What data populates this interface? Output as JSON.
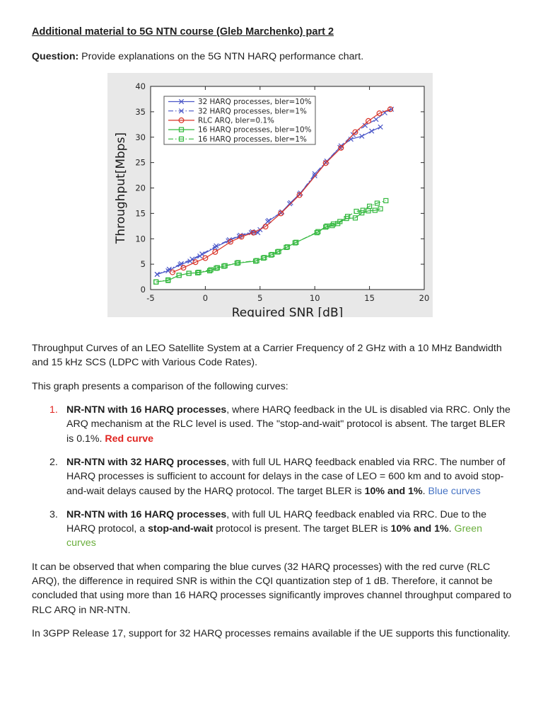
{
  "page": {
    "title": "Additional material to 5G NTN course (Gleb Marchenko) part 2",
    "question_label": "Question:",
    "question_text": " Provide explanations on the 5G NTN HARQ performance chart.",
    "caption": "Throughput Curves of an LEO Satellite System at a Carrier Frequency of 2 GHz with a 10 MHz Bandwidth and 15 kHz SCS (LDPC with Various Code Rates).",
    "intro": "This graph presents a comparison of the following curves:",
    "list": [
      {
        "number": "1.",
        "number_color": "#e02420",
        "segments": [
          {
            "text": "NR-NTN with 16 HARQ processes",
            "bold": true
          },
          {
            "text": ", where HARQ feedback in the UL is disabled via RRC. Only the ARQ mechanism at the RLC level is used. The \"stop-and-wait\" protocol is absent. The target BLER is 0.1%. "
          },
          {
            "text": "Red curve",
            "bold": true,
            "color": "#e02420"
          }
        ]
      },
      {
        "number": "2.",
        "segments": [
          {
            "text": "NR-NTN with 32 HARQ processes",
            "bold": true
          },
          {
            "text": ", with full UL HARQ feedback enabled via RRC. The number of HARQ processes is sufficient to account for delays in the case of LEO = 600 km and to avoid stop-and-wait delays caused by the HARQ protocol. The target BLER is "
          },
          {
            "text": "10% and 1%",
            "bold": true
          },
          {
            "text": ". "
          },
          {
            "text": "Blue curves",
            "color": "#4472c4"
          }
        ]
      },
      {
        "number": "3.",
        "segments": [
          {
            "text": "NR-NTN with 16 HARQ processes",
            "bold": true
          },
          {
            "text": ", with full UL HARQ feedback enabled via RRC. Due to the HARQ protocol, a "
          },
          {
            "text": "stop-and-wait",
            "bold": true
          },
          {
            "text": " protocol is present. The target BLER is "
          },
          {
            "text": "10% and 1%",
            "bold": true
          },
          {
            "text": ". "
          },
          {
            "text": "Green curves",
            "color": "#6aae3c"
          }
        ]
      }
    ],
    "closing_1": "It can be observed that when comparing the blue curves (32 HARQ processes) with the red curve (RLC ARQ), the difference in required SNR is within the CQI quantization step of 1 dB. Therefore, it cannot be concluded that using more than 16 HARQ processes significantly improves channel throughput compared to RLC ARQ in NR-NTN.",
    "closing_2": "In 3GPP Release 17, support for 32 HARQ processes remains available if the UE supports this functionality."
  },
  "chart_data": {
    "type": "line",
    "title": "",
    "xlabel": "Required SNR [dB]",
    "ylabel": "Throughput[Mbps]",
    "xlim": [
      -5,
      20
    ],
    "ylim": [
      0,
      40
    ],
    "xticks": [
      -5,
      0,
      5,
      10,
      15,
      20
    ],
    "yticks": [
      0,
      5,
      10,
      15,
      20,
      25,
      30,
      35,
      40
    ],
    "grid": false,
    "legend_position": "top-left",
    "panel_background": "#e8e8e8",
    "plot_background": "#ffffff",
    "series": [
      {
        "name": "32 HARQ processes, bler=10%",
        "color": "#4b57c8",
        "line": "solid",
        "marker": "x",
        "points": [
          [
            -4.4,
            3.0
          ],
          [
            -3.4,
            3.7
          ],
          [
            -2.3,
            4.9
          ],
          [
            -1.4,
            5.6
          ],
          [
            -0.5,
            6.6
          ],
          [
            0.9,
            8.3
          ],
          [
            2.1,
            9.6
          ],
          [
            3.1,
            10.5
          ],
          [
            4.2,
            11.2
          ],
          [
            4.8,
            11.2
          ],
          [
            5.7,
            13.4
          ],
          [
            6.9,
            15.1
          ],
          [
            7.7,
            16.9
          ],
          [
            8.6,
            18.8
          ],
          [
            10.0,
            22.4
          ],
          [
            11.0,
            25.0
          ],
          [
            12.3,
            28.0
          ],
          [
            13.3,
            29.6
          ],
          [
            14.3,
            30.2
          ],
          [
            15.2,
            31.2
          ],
          [
            16.0,
            32.0
          ]
        ]
      },
      {
        "name": "32 HARQ processes, bler=1%",
        "color": "#4b57c8",
        "line": "dashdot",
        "marker": "x",
        "points": [
          [
            -4.4,
            3.0
          ],
          [
            -3.3,
            4.0
          ],
          [
            -2.2,
            5.1
          ],
          [
            -1.2,
            6.0
          ],
          [
            -0.3,
            7.0
          ],
          [
            1.0,
            8.6
          ],
          [
            2.2,
            9.8
          ],
          [
            3.2,
            10.7
          ],
          [
            4.3,
            11.4
          ],
          [
            5.0,
            11.8
          ],
          [
            5.8,
            13.6
          ],
          [
            7.0,
            15.3
          ],
          [
            7.8,
            17.1
          ],
          [
            8.7,
            19.0
          ],
          [
            10.0,
            22.8
          ],
          [
            11.1,
            25.3
          ],
          [
            12.4,
            28.3
          ],
          [
            13.5,
            30.5
          ],
          [
            14.6,
            32.3
          ],
          [
            15.6,
            33.5
          ],
          [
            16.4,
            34.8
          ],
          [
            17.0,
            35.5
          ]
        ]
      },
      {
        "name": "RLC ARQ, bler=0.1%",
        "color": "#d93226",
        "line": "solid",
        "marker": "o",
        "points": [
          [
            -3.0,
            3.4
          ],
          [
            -2.0,
            4.3
          ],
          [
            -0.9,
            5.4
          ],
          [
            0.0,
            6.2
          ],
          [
            0.9,
            7.4
          ],
          [
            2.3,
            9.4
          ],
          [
            3.3,
            10.4
          ],
          [
            4.4,
            11.2
          ],
          [
            5.5,
            12.4
          ],
          [
            6.9,
            15.0
          ],
          [
            8.6,
            18.6
          ],
          [
            11.0,
            24.9
          ],
          [
            12.4,
            27.9
          ],
          [
            13.7,
            31.0
          ],
          [
            14.9,
            33.2
          ],
          [
            15.9,
            34.7
          ],
          [
            16.9,
            35.5
          ]
        ]
      },
      {
        "name": "16 HARQ processes, bler=10%",
        "color": "#33b83e",
        "line": "solid",
        "marker": "s",
        "points": [
          [
            -4.5,
            1.5
          ],
          [
            -3.4,
            1.8
          ],
          [
            -2.4,
            2.8
          ],
          [
            -1.5,
            3.2
          ],
          [
            -0.7,
            3.3
          ],
          [
            0.4,
            3.7
          ],
          [
            1.0,
            4.2
          ],
          [
            1.7,
            4.6
          ],
          [
            2.9,
            5.2
          ],
          [
            4.6,
            5.6
          ],
          [
            5.3,
            6.2
          ],
          [
            6.0,
            6.8
          ],
          [
            6.6,
            7.4
          ],
          [
            7.4,
            8.3
          ],
          [
            8.2,
            9.2
          ],
          [
            10.2,
            11.2
          ],
          [
            11.0,
            12.3
          ],
          [
            11.6,
            12.6
          ],
          [
            12.1,
            13.0
          ],
          [
            12.9,
            14.0
          ],
          [
            13.7,
            14.1
          ],
          [
            14.3,
            15.1
          ],
          [
            14.9,
            15.5
          ],
          [
            15.5,
            15.6
          ],
          [
            16.0,
            15.9
          ]
        ]
      },
      {
        "name": "16 HARQ processes, bler=1%",
        "color": "#33b83e",
        "line": "dashdot",
        "marker": "s",
        "points": [
          [
            -4.5,
            1.5
          ],
          [
            -3.4,
            1.9
          ],
          [
            -2.4,
            2.8
          ],
          [
            -1.5,
            3.2
          ],
          [
            -0.6,
            3.4
          ],
          [
            0.5,
            3.9
          ],
          [
            1.1,
            4.3
          ],
          [
            1.8,
            4.7
          ],
          [
            3.0,
            5.3
          ],
          [
            4.7,
            5.7
          ],
          [
            5.4,
            6.3
          ],
          [
            6.1,
            6.9
          ],
          [
            6.7,
            7.5
          ],
          [
            7.5,
            8.4
          ],
          [
            8.3,
            9.3
          ],
          [
            10.3,
            11.4
          ],
          [
            11.1,
            12.5
          ],
          [
            11.7,
            12.9
          ],
          [
            12.3,
            13.4
          ],
          [
            13.0,
            14.4
          ],
          [
            13.8,
            15.4
          ],
          [
            14.4,
            15.6
          ],
          [
            15.0,
            16.4
          ],
          [
            15.7,
            17.0
          ],
          [
            16.5,
            17.5
          ]
        ]
      }
    ]
  }
}
